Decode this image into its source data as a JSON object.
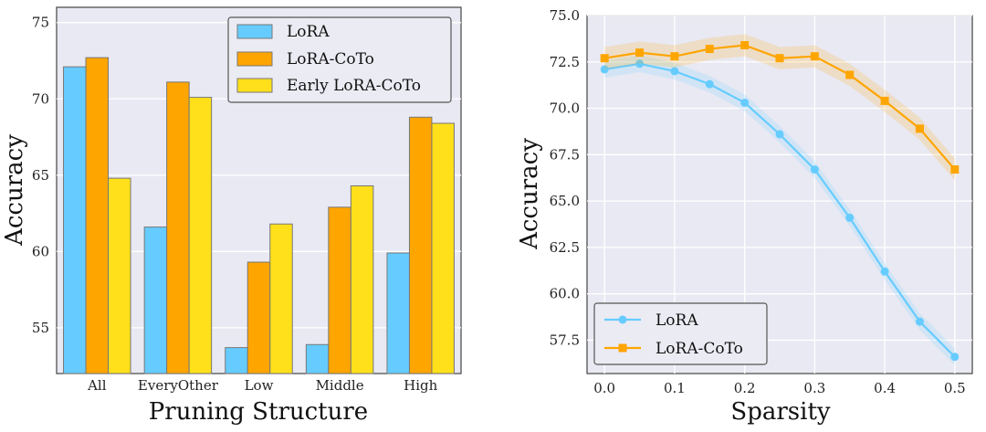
{
  "chart_data": [
    {
      "type": "bar",
      "title": "",
      "xlabel": "Pruning Structure",
      "ylabel": "Accuracy",
      "ylim": [
        52,
        76
      ],
      "yticks": [
        55,
        60,
        65,
        70,
        75
      ],
      "grid": true,
      "legend_position": "top-right",
      "categories": [
        "All",
        "EveryOther",
        "Low",
        "Middle",
        "High"
      ],
      "series": [
        {
          "name": "LoRA",
          "color": "#66ccff",
          "values": [
            72.1,
            61.6,
            53.7,
            53.9,
            59.9
          ]
        },
        {
          "name": "LoRA-CoTo",
          "color": "#ffa500",
          "values": [
            72.7,
            71.1,
            59.3,
            62.9,
            68.8
          ]
        },
        {
          "name": "Early LoRA-CoTo",
          "color": "#ffe01a",
          "values": [
            64.8,
            70.1,
            61.8,
            64.3,
            68.4
          ]
        }
      ]
    },
    {
      "type": "line",
      "title": "",
      "xlabel": "Sparsity",
      "ylabel": "Accuracy",
      "xlim": [
        -0.025,
        0.525
      ],
      "ylim": [
        55.7,
        75.0
      ],
      "xticks": [
        "0.0",
        "0.1",
        "0.2",
        "0.3",
        "0.4",
        "0.5"
      ],
      "yticks": [
        "57.5",
        "60.0",
        "62.5",
        "65.0",
        "67.5",
        "70.0",
        "72.5",
        "75.0"
      ],
      "grid": true,
      "legend_position": "bottom-left",
      "x": [
        0.0,
        0.05,
        0.1,
        0.15,
        0.2,
        0.25,
        0.3,
        0.35,
        0.4,
        0.45,
        0.5
      ],
      "series": [
        {
          "name": "LoRA",
          "color": "#66ccff",
          "marker": "circle",
          "band": 0.45,
          "values": [
            72.1,
            72.4,
            72.0,
            71.3,
            70.3,
            68.6,
            66.7,
            64.1,
            61.2,
            58.5,
            56.6
          ]
        },
        {
          "name": "LoRA-CoTo",
          "color": "#ffa500",
          "marker": "square",
          "band": 0.6,
          "values": [
            72.7,
            73.0,
            72.8,
            73.2,
            73.4,
            72.7,
            72.8,
            71.8,
            70.4,
            68.9,
            66.7
          ]
        }
      ]
    }
  ]
}
